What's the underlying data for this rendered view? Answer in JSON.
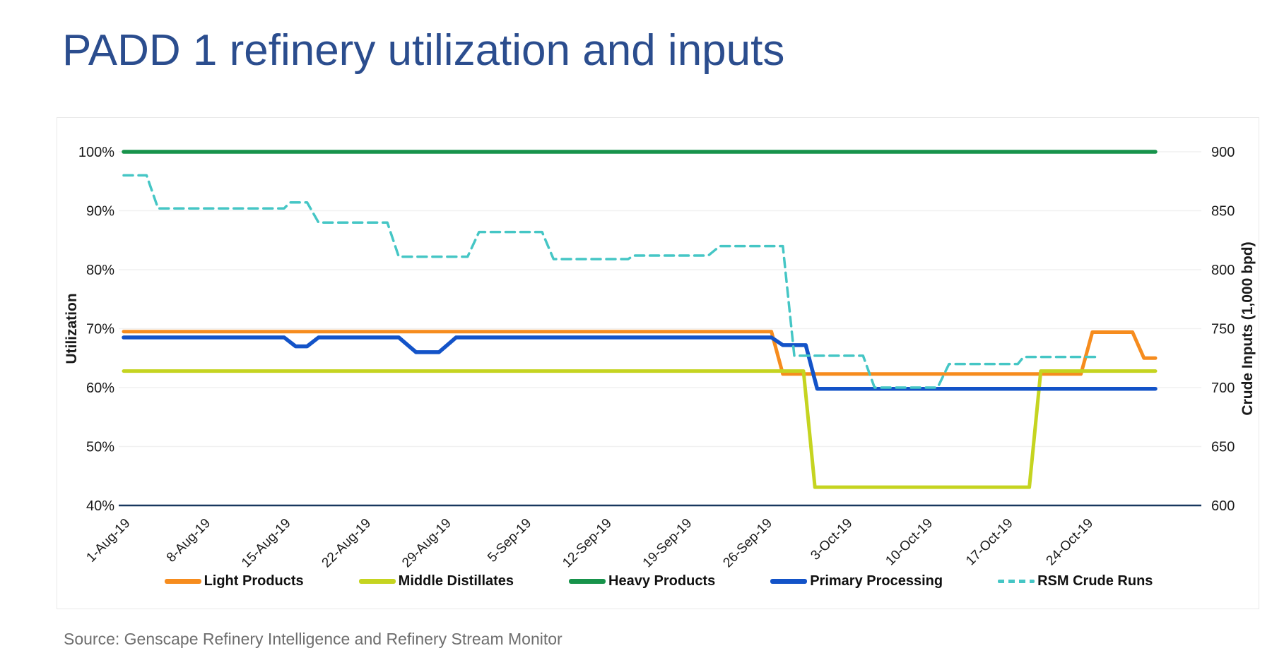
{
  "page": {
    "title": "PADD 1 refinery utilization and inputs",
    "source": "Source: Genscape Refinery Intelligence and Refinery Stream Monitor"
  },
  "chart_data": {
    "type": "line",
    "title": "PADD 1 refinery utilization and inputs",
    "grid": "horizontal-only",
    "legend_position": "bottom",
    "x_axis": {
      "kind": "daily dates, 1-Aug-19 through 30-Oct-19",
      "total_days": 90,
      "tick_days": [
        0,
        7,
        14,
        21,
        28,
        35,
        42,
        49,
        56,
        63,
        70,
        77,
        84
      ],
      "tick_labels": [
        "1-Aug-19",
        "8-Aug-19",
        "15-Aug-19",
        "22-Aug-19",
        "29-Aug-19",
        "5-Sep-19",
        "12-Sep-19",
        "19-Sep-19",
        "26-Sep-19",
        "3-Oct-19",
        "10-Oct-19",
        "17-Oct-19",
        "24-Oct-19"
      ]
    },
    "left_axis": {
      "label": "Utilization",
      "unit": "%",
      "range": [
        40,
        100
      ],
      "tick_values": [
        100,
        90,
        80,
        70,
        60,
        50,
        40
      ],
      "tick_labels": [
        "100%",
        "90%",
        "80%",
        "70%",
        "60%",
        "50%",
        "40%"
      ]
    },
    "right_axis": {
      "label": "Crude Inputs (1,000 bpd)",
      "unit": "1,000 bpd",
      "range": [
        600,
        900
      ],
      "tick_values": [
        900,
        850,
        800,
        750,
        700,
        650,
        600
      ],
      "tick_labels": [
        "900",
        "850",
        "800",
        "750",
        "700",
        "650",
        "600"
      ]
    },
    "axis_line_color": "#17375e",
    "gridline_color": "#f1f1f1",
    "series": [
      {
        "name": "Light Products",
        "axis": "left",
        "style": "solid",
        "color": "#f68c1e",
        "width": 5,
        "points": [
          [
            0,
            69.5
          ],
          [
            56.5,
            69.5
          ],
          [
            57.5,
            62.3
          ],
          [
            83.5,
            62.3
          ],
          [
            84.5,
            69.4
          ],
          [
            88,
            69.4
          ],
          [
            89,
            65.0
          ],
          [
            90,
            65.0
          ]
        ]
      },
      {
        "name": "Middle Distillates",
        "axis": "left",
        "style": "solid",
        "color": "#c5d420",
        "width": 5,
        "points": [
          [
            0,
            62.8
          ],
          [
            59.3,
            62.8
          ],
          [
            60.3,
            43.1
          ],
          [
            79,
            43.1
          ],
          [
            80,
            62.8
          ],
          [
            90,
            62.8
          ]
        ]
      },
      {
        "name": "Heavy Products",
        "axis": "left",
        "style": "solid",
        "color": "#17934b",
        "width": 5.5,
        "points": [
          [
            0,
            100
          ],
          [
            90,
            100
          ]
        ]
      },
      {
        "name": "Primary Processing",
        "axis": "left",
        "style": "solid",
        "color": "#1353c8",
        "width": 5.5,
        "points": [
          [
            0,
            68.5
          ],
          [
            14,
            68.5
          ],
          [
            15,
            67.0
          ],
          [
            16,
            67.0
          ],
          [
            17,
            68.5
          ],
          [
            24,
            68.5
          ],
          [
            25.5,
            66.0
          ],
          [
            27.5,
            66.0
          ],
          [
            29,
            68.5
          ],
          [
            56.5,
            68.5
          ],
          [
            57.5,
            67.2
          ],
          [
            59.5,
            67.2
          ],
          [
            60.5,
            59.8
          ],
          [
            90,
            59.8
          ]
        ]
      },
      {
        "name": "RSM Crude Runs",
        "axis": "right",
        "style": "dashed",
        "color": "#45c6c5",
        "width": 3.5,
        "points": [
          [
            0,
            880
          ],
          [
            2,
            880
          ],
          [
            3,
            852
          ],
          [
            14,
            852
          ],
          [
            14.5,
            857
          ],
          [
            16,
            857
          ],
          [
            17,
            840
          ],
          [
            23,
            840
          ],
          [
            24,
            811
          ],
          [
            30,
            811
          ],
          [
            31,
            832
          ],
          [
            36.5,
            832
          ],
          [
            37.5,
            809
          ],
          [
            44,
            809
          ],
          [
            44.5,
            812
          ],
          [
            51,
            812
          ],
          [
            52,
            820
          ],
          [
            57.5,
            820
          ],
          [
            58.5,
            727
          ],
          [
            64.5,
            727
          ],
          [
            65.5,
            700
          ],
          [
            71,
            700
          ],
          [
            72,
            720
          ],
          [
            78,
            720
          ],
          [
            78.5,
            726
          ],
          [
            85,
            726
          ]
        ]
      }
    ]
  }
}
